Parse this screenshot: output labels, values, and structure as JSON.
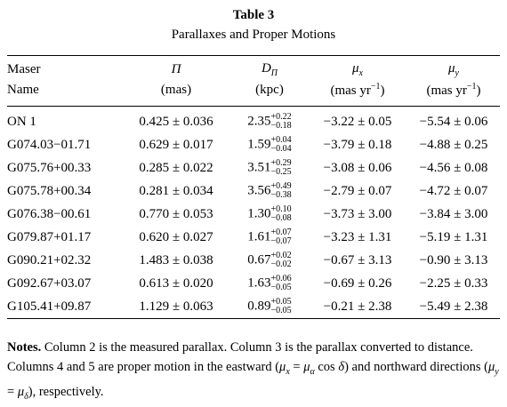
{
  "table": {
    "title": "Table 3",
    "caption": "Parallaxes and Proper Motions",
    "header": [
      [
        "Maser",
        {
          "base": "Π"
        },
        {
          "base": "D",
          "sub": "Π"
        },
        {
          "base": "μ",
          "sub": "x"
        },
        {
          "base": "μ",
          "sub": "y"
        }
      ],
      [
        "Name",
        "(mas)",
        "(kpc)",
        {
          "base": "(mas yr",
          "sup": "−1",
          "tail": ")"
        },
        {
          "base": "(mas yr",
          "sup": "−1",
          "tail": ")"
        }
      ]
    ],
    "rows": [
      [
        "ON 1",
        "0.425 ± 0.036",
        {
          "value": "2.35",
          "plus": "+0.22",
          "minus": "−0.18"
        },
        "−3.22 ± 0.05",
        "−5.54 ± 0.06"
      ],
      [
        "G074.03−01.71",
        "0.629 ± 0.017",
        {
          "value": "1.59",
          "plus": "+0.04",
          "minus": "−0.04"
        },
        "−3.79 ± 0.18",
        "−4.88 ± 0.25"
      ],
      [
        "G075.76+00.33",
        "0.285 ± 0.022",
        {
          "value": "3.51",
          "plus": "+0.29",
          "minus": "−0.25"
        },
        "−3.08 ± 0.06",
        "−4.56 ± 0.08"
      ],
      [
        "G075.78+00.34",
        "0.281 ± 0.034",
        {
          "value": "3.56",
          "plus": "+0.49",
          "minus": "−0.38"
        },
        "−2.79 ± 0.07",
        "−4.72 ± 0.07"
      ],
      [
        "G076.38−00.61",
        "0.770 ± 0.053",
        {
          "value": "1.30",
          "plus": "+0.10",
          "minus": "−0.08"
        },
        "−3.73 ± 3.00",
        "−3.84 ± 3.00"
      ],
      [
        "G079.87+01.17",
        "0.620 ± 0.027",
        {
          "value": "1.61",
          "plus": "+0.07",
          "minus": "−0.07"
        },
        "−3.23 ± 1.31",
        "−5.19 ± 1.31"
      ],
      [
        "G090.21+02.32",
        "1.483 ± 0.038",
        {
          "value": "0.67",
          "plus": "+0.02",
          "minus": "−0.02"
        },
        "−0.67 ± 3.13",
        "−0.90 ± 3.13"
      ],
      [
        "G092.67+03.07",
        "0.613 ± 0.020",
        {
          "value": "1.63",
          "plus": "+0.06",
          "minus": "−0.05"
        },
        "−0.69 ± 0.26",
        "−2.25 ± 0.33"
      ],
      [
        "G105.41+09.87",
        "1.129 ± 0.063",
        {
          "value": "0.89",
          "plus": "+0.05",
          "minus": "−0.05"
        },
        "−0.21 ± 2.38",
        "−5.49 ± 2.38"
      ]
    ]
  },
  "notes": {
    "label": "Notes.",
    "body": [
      "Column 2 is the measured parallax. Column 3 is the parallax converted to distance. Columns 4 and 5 are proper motion in the eastward (",
      {
        "base": "μ",
        "sub": "x"
      },
      " = ",
      {
        "base": "μ",
        "sub": "α"
      },
      " cos ",
      {
        "base": "δ"
      },
      ") and northward directions (",
      {
        "base": "μ",
        "sub": "y"
      },
      " = ",
      {
        "base": "μ",
        "sub": "δ"
      },
      "), respectively."
    ]
  }
}
